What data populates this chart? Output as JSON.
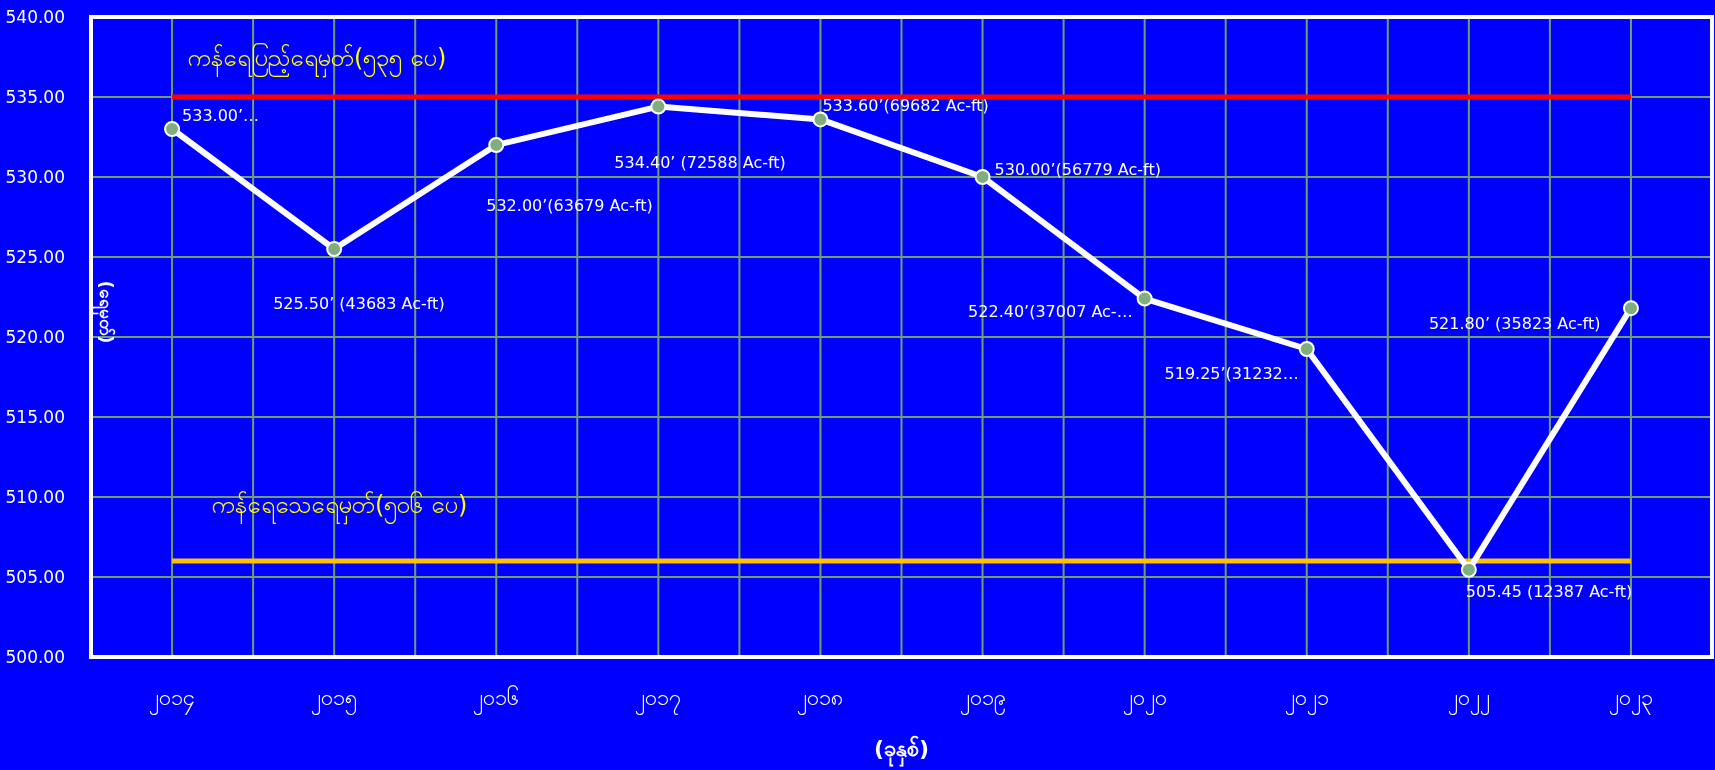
{
  "chart_data": {
    "type": "line",
    "xlabel": "(ခုနှစ်)",
    "ylabel": "(ရေမှတ်)",
    "categories": [
      "၂၀၁၄",
      "၂၀၁၅",
      "၂၀၁၆",
      "၂၀၁၇",
      "၂၀၁၈",
      "၂၀၁၉",
      "၂၀၂၀",
      "၂၀၂၁",
      "၂၀၂၂",
      "၂၀၂၃"
    ],
    "series": [
      {
        "color": "#ffffff",
        "values": [
          533.0,
          525.5,
          532.0,
          534.4,
          533.6,
          530.0,
          522.4,
          519.25,
          505.45,
          521.8
        ],
        "value_labels": [
          "533.00’…",
          "525.50’ (43683 Ac-ft)",
          "532.00’(63679 Ac-ft)",
          "534.40’ (72588 Ac-ft)",
          "533.60’(69682 Ac-ft)",
          "530.00’(56779 Ac-ft)",
          "522.40’(37007 Ac-…",
          "519.25’(31232…",
          "505.45 (12387 Ac-ft)",
          "521.80’ (35823 Ac-ft)"
        ]
      }
    ],
    "ylim": [
      500,
      540
    ],
    "yticks": [
      {
        "value": 500,
        "label": "500.00"
      },
      {
        "value": 505,
        "label": "505.00"
      },
      {
        "value": 510,
        "label": "510.00"
      },
      {
        "value": 515,
        "label": "515.00"
      },
      {
        "value": 520,
        "label": "520.00"
      },
      {
        "value": 525,
        "label": "525.00"
      },
      {
        "value": 530,
        "label": "530.00"
      },
      {
        "value": 535,
        "label": "535.00"
      },
      {
        "value": 540,
        "label": "540.00"
      }
    ],
    "ref_lines": [
      {
        "axis": "y",
        "value": 535,
        "label": "ကန်ရေပြည့်ရေမှတ်(၅၃၅ ပေ)",
        "color": "#ff0000"
      },
      {
        "axis": "y",
        "value": 506,
        "label": "ကန်ရေသေရေမှတ်(၅၀၆ ပေ)",
        "color": "#ffc000"
      }
    ],
    "grid": true,
    "marker": "circle",
    "line_style": "solid"
  }
}
